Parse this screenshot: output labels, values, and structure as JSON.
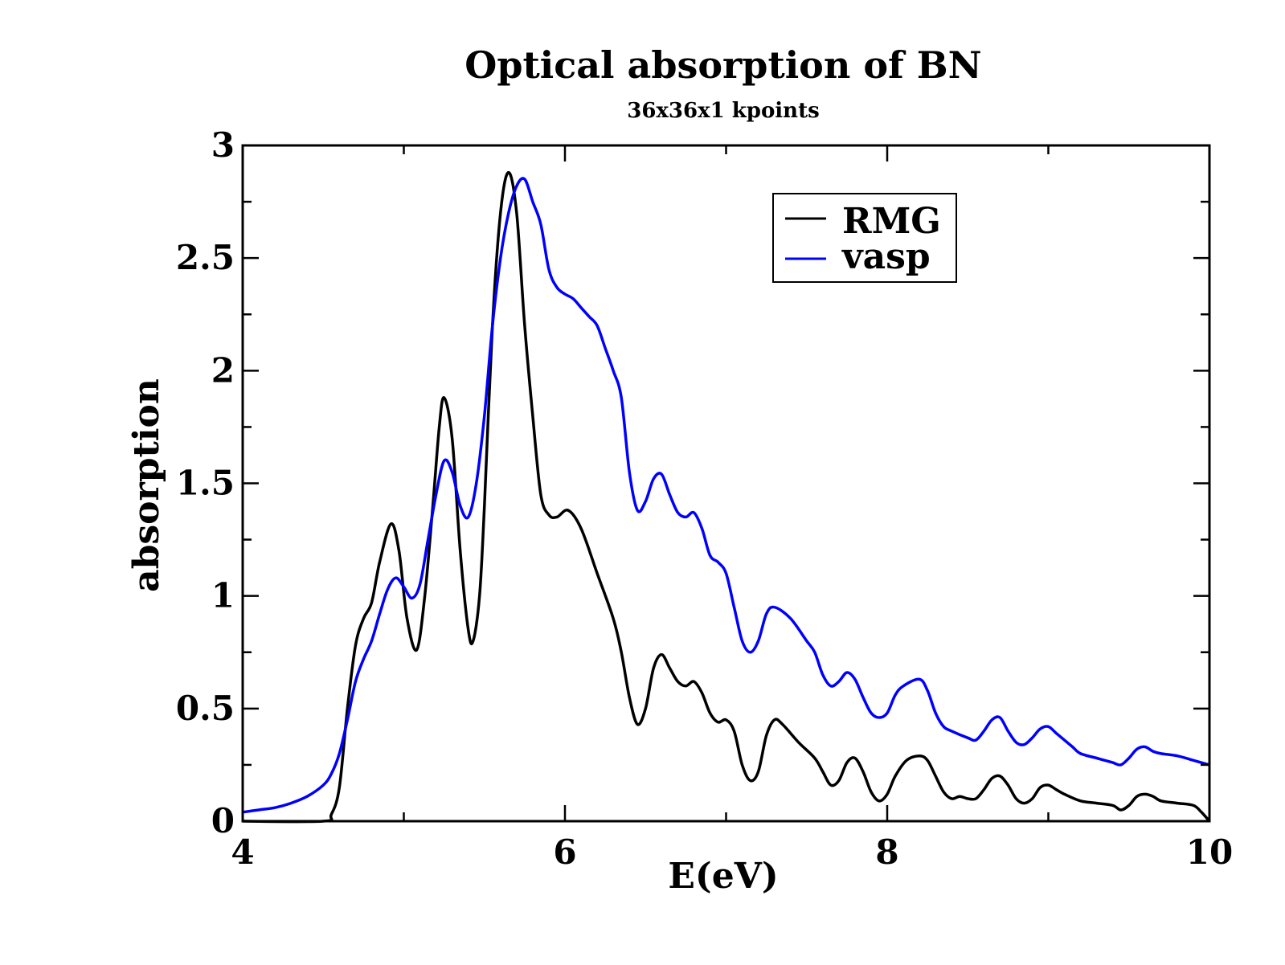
{
  "chart_data": {
    "type": "line",
    "title": "Optical absorption of BN",
    "subtitle": "36x36x1 kpoints",
    "xlabel": "E(eV)",
    "ylabel": "absorption",
    "xlim": [
      4,
      10
    ],
    "ylim": [
      0,
      3
    ],
    "x_ticks": [
      4,
      6,
      8,
      10
    ],
    "x_tick_labels": [
      "4",
      "6",
      "8",
      "10"
    ],
    "y_ticks": [
      0,
      0.5,
      1,
      1.5,
      2,
      2.5,
      3
    ],
    "y_tick_labels": [
      "0",
      "0.5",
      "1",
      "1.5",
      "2",
      "2.5",
      "3"
    ],
    "grid": false,
    "legend_position": "top-right",
    "series": [
      {
        "name": "RMG",
        "color": "#000000",
        "points": [
          [
            4.0,
            0.0
          ],
          [
            4.5,
            0.0
          ],
          [
            4.55,
            0.03
          ],
          [
            4.6,
            0.15
          ],
          [
            4.65,
            0.5
          ],
          [
            4.7,
            0.78
          ],
          [
            4.75,
            0.9
          ],
          [
            4.8,
            0.97
          ],
          [
            4.85,
            1.15
          ],
          [
            4.92,
            1.32
          ],
          [
            4.97,
            1.2
          ],
          [
            5.02,
            0.9
          ],
          [
            5.08,
            0.76
          ],
          [
            5.13,
            1.0
          ],
          [
            5.18,
            1.4
          ],
          [
            5.22,
            1.75
          ],
          [
            5.25,
            1.88
          ],
          [
            5.3,
            1.7
          ],
          [
            5.35,
            1.2
          ],
          [
            5.4,
            0.85
          ],
          [
            5.43,
            0.8
          ],
          [
            5.47,
            1.0
          ],
          [
            5.5,
            1.4
          ],
          [
            5.55,
            2.2
          ],
          [
            5.6,
            2.7
          ],
          [
            5.65,
            2.88
          ],
          [
            5.7,
            2.7
          ],
          [
            5.75,
            2.2
          ],
          [
            5.8,
            1.8
          ],
          [
            5.85,
            1.45
          ],
          [
            5.9,
            1.36
          ],
          [
            5.95,
            1.35
          ],
          [
            6.02,
            1.38
          ],
          [
            6.1,
            1.3
          ],
          [
            6.2,
            1.1
          ],
          [
            6.3,
            0.9
          ],
          [
            6.35,
            0.75
          ],
          [
            6.4,
            0.55
          ],
          [
            6.45,
            0.43
          ],
          [
            6.5,
            0.5
          ],
          [
            6.55,
            0.68
          ],
          [
            6.6,
            0.74
          ],
          [
            6.65,
            0.68
          ],
          [
            6.7,
            0.62
          ],
          [
            6.75,
            0.6
          ],
          [
            6.8,
            0.62
          ],
          [
            6.85,
            0.57
          ],
          [
            6.9,
            0.48
          ],
          [
            6.95,
            0.44
          ],
          [
            7.0,
            0.45
          ],
          [
            7.05,
            0.4
          ],
          [
            7.1,
            0.25
          ],
          [
            7.15,
            0.18
          ],
          [
            7.2,
            0.22
          ],
          [
            7.25,
            0.38
          ],
          [
            7.3,
            0.45
          ],
          [
            7.35,
            0.43
          ],
          [
            7.45,
            0.35
          ],
          [
            7.55,
            0.28
          ],
          [
            7.6,
            0.22
          ],
          [
            7.65,
            0.16
          ],
          [
            7.7,
            0.18
          ],
          [
            7.75,
            0.26
          ],
          [
            7.8,
            0.28
          ],
          [
            7.85,
            0.22
          ],
          [
            7.9,
            0.13
          ],
          [
            7.95,
            0.09
          ],
          [
            8.0,
            0.12
          ],
          [
            8.05,
            0.2
          ],
          [
            8.12,
            0.27
          ],
          [
            8.2,
            0.29
          ],
          [
            8.25,
            0.27
          ],
          [
            8.3,
            0.2
          ],
          [
            8.35,
            0.13
          ],
          [
            8.4,
            0.1
          ],
          [
            8.45,
            0.11
          ],
          [
            8.5,
            0.1
          ],
          [
            8.55,
            0.1
          ],
          [
            8.6,
            0.14
          ],
          [
            8.65,
            0.19
          ],
          [
            8.7,
            0.2
          ],
          [
            8.75,
            0.16
          ],
          [
            8.8,
            0.1
          ],
          [
            8.85,
            0.08
          ],
          [
            8.9,
            0.1
          ],
          [
            8.95,
            0.15
          ],
          [
            9.0,
            0.16
          ],
          [
            9.05,
            0.14
          ],
          [
            9.1,
            0.12
          ],
          [
            9.2,
            0.09
          ],
          [
            9.3,
            0.08
          ],
          [
            9.4,
            0.07
          ],
          [
            9.45,
            0.05
          ],
          [
            9.5,
            0.07
          ],
          [
            9.55,
            0.11
          ],
          [
            9.6,
            0.12
          ],
          [
            9.65,
            0.11
          ],
          [
            9.7,
            0.09
          ],
          [
            9.8,
            0.08
          ],
          [
            9.9,
            0.07
          ],
          [
            9.95,
            0.04
          ],
          [
            10.0,
            0.0
          ]
        ]
      },
      {
        "name": "vasp",
        "color": "#0000ff",
        "points": [
          [
            4.0,
            0.04
          ],
          [
            4.1,
            0.05
          ],
          [
            4.2,
            0.06
          ],
          [
            4.3,
            0.08
          ],
          [
            4.4,
            0.11
          ],
          [
            4.5,
            0.16
          ],
          [
            4.55,
            0.21
          ],
          [
            4.6,
            0.3
          ],
          [
            4.65,
            0.45
          ],
          [
            4.7,
            0.62
          ],
          [
            4.75,
            0.72
          ],
          [
            4.8,
            0.8
          ],
          [
            4.85,
            0.92
          ],
          [
            4.9,
            1.03
          ],
          [
            4.95,
            1.08
          ],
          [
            5.0,
            1.04
          ],
          [
            5.05,
            0.99
          ],
          [
            5.1,
            1.05
          ],
          [
            5.15,
            1.25
          ],
          [
            5.2,
            1.45
          ],
          [
            5.25,
            1.6
          ],
          [
            5.3,
            1.55
          ],
          [
            5.35,
            1.4
          ],
          [
            5.4,
            1.35
          ],
          [
            5.45,
            1.5
          ],
          [
            5.5,
            1.8
          ],
          [
            5.55,
            2.2
          ],
          [
            5.6,
            2.5
          ],
          [
            5.65,
            2.7
          ],
          [
            5.7,
            2.82
          ],
          [
            5.75,
            2.85
          ],
          [
            5.8,
            2.75
          ],
          [
            5.85,
            2.65
          ],
          [
            5.9,
            2.45
          ],
          [
            5.95,
            2.37
          ],
          [
            6.0,
            2.34
          ],
          [
            6.05,
            2.32
          ],
          [
            6.1,
            2.28
          ],
          [
            6.15,
            2.24
          ],
          [
            6.2,
            2.2
          ],
          [
            6.25,
            2.1
          ],
          [
            6.3,
            2.0
          ],
          [
            6.35,
            1.88
          ],
          [
            6.4,
            1.55
          ],
          [
            6.45,
            1.38
          ],
          [
            6.5,
            1.42
          ],
          [
            6.55,
            1.52
          ],
          [
            6.6,
            1.54
          ],
          [
            6.65,
            1.45
          ],
          [
            6.7,
            1.37
          ],
          [
            6.75,
            1.35
          ],
          [
            6.8,
            1.37
          ],
          [
            6.85,
            1.3
          ],
          [
            6.9,
            1.18
          ],
          [
            6.95,
            1.15
          ],
          [
            7.0,
            1.1
          ],
          [
            7.05,
            0.95
          ],
          [
            7.1,
            0.8
          ],
          [
            7.15,
            0.75
          ],
          [
            7.2,
            0.8
          ],
          [
            7.25,
            0.92
          ],
          [
            7.3,
            0.95
          ],
          [
            7.4,
            0.9
          ],
          [
            7.5,
            0.8
          ],
          [
            7.55,
            0.75
          ],
          [
            7.6,
            0.65
          ],
          [
            7.65,
            0.6
          ],
          [
            7.7,
            0.62
          ],
          [
            7.75,
            0.66
          ],
          [
            7.8,
            0.63
          ],
          [
            7.85,
            0.55
          ],
          [
            7.9,
            0.48
          ],
          [
            7.95,
            0.46
          ],
          [
            8.0,
            0.48
          ],
          [
            8.05,
            0.56
          ],
          [
            8.1,
            0.6
          ],
          [
            8.2,
            0.63
          ],
          [
            8.25,
            0.58
          ],
          [
            8.3,
            0.48
          ],
          [
            8.35,
            0.42
          ],
          [
            8.4,
            0.4
          ],
          [
            8.5,
            0.37
          ],
          [
            8.55,
            0.36
          ],
          [
            8.6,
            0.4
          ],
          [
            8.65,
            0.45
          ],
          [
            8.7,
            0.46
          ],
          [
            8.75,
            0.4
          ],
          [
            8.8,
            0.35
          ],
          [
            8.85,
            0.34
          ],
          [
            8.9,
            0.37
          ],
          [
            8.95,
            0.41
          ],
          [
            9.0,
            0.42
          ],
          [
            9.05,
            0.39
          ],
          [
            9.1,
            0.36
          ],
          [
            9.15,
            0.33
          ],
          [
            9.2,
            0.3
          ],
          [
            9.3,
            0.28
          ],
          [
            9.35,
            0.27
          ],
          [
            9.4,
            0.26
          ],
          [
            9.45,
            0.25
          ],
          [
            9.5,
            0.28
          ],
          [
            9.55,
            0.32
          ],
          [
            9.6,
            0.33
          ],
          [
            9.65,
            0.31
          ],
          [
            9.7,
            0.3
          ],
          [
            9.8,
            0.29
          ],
          [
            9.9,
            0.27
          ],
          [
            10.0,
            0.25
          ]
        ]
      }
    ]
  }
}
